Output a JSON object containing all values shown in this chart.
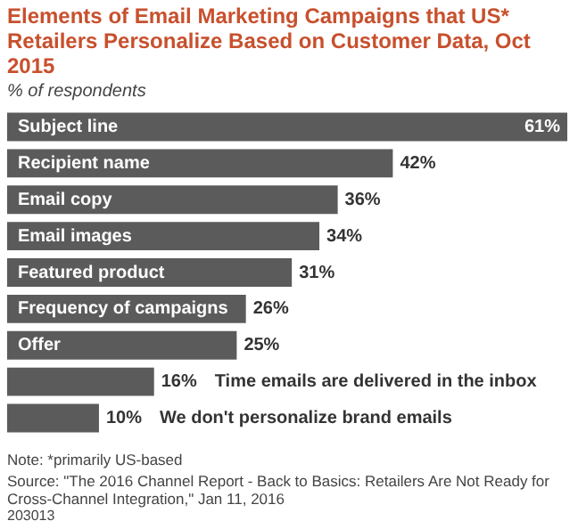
{
  "chart_data": {
    "type": "bar",
    "orientation": "horizontal",
    "title": "Elements of Email Marketing Campaigns that US* Retailers Personalize Based on Customer Data, Oct 2015",
    "subtitle": "% of respondents",
    "categories": [
      "Subject line",
      "Recipient name",
      "Email copy",
      "Email images",
      "Featured product",
      "Frequency of campaigns",
      "Offer",
      "Time emails are delivered in the inbox",
      "We don't personalize brand emails"
    ],
    "values": [
      61,
      42,
      36,
      34,
      31,
      26,
      25,
      16,
      10
    ],
    "color": "#5b5b5b",
    "value_labels": [
      "61%",
      "42%",
      "36%",
      "34%",
      "31%",
      "26%",
      "25%",
      "16%",
      "10%"
    ],
    "legend": false,
    "annotations": [
      "Note: *primarily US-based",
      "Source: \"The 2016 Channel Report - Back to Basics: Retailers Are Not Ready for Cross-Channel Integration,\" Jan 11, 2016",
      "203013"
    ]
  }
}
